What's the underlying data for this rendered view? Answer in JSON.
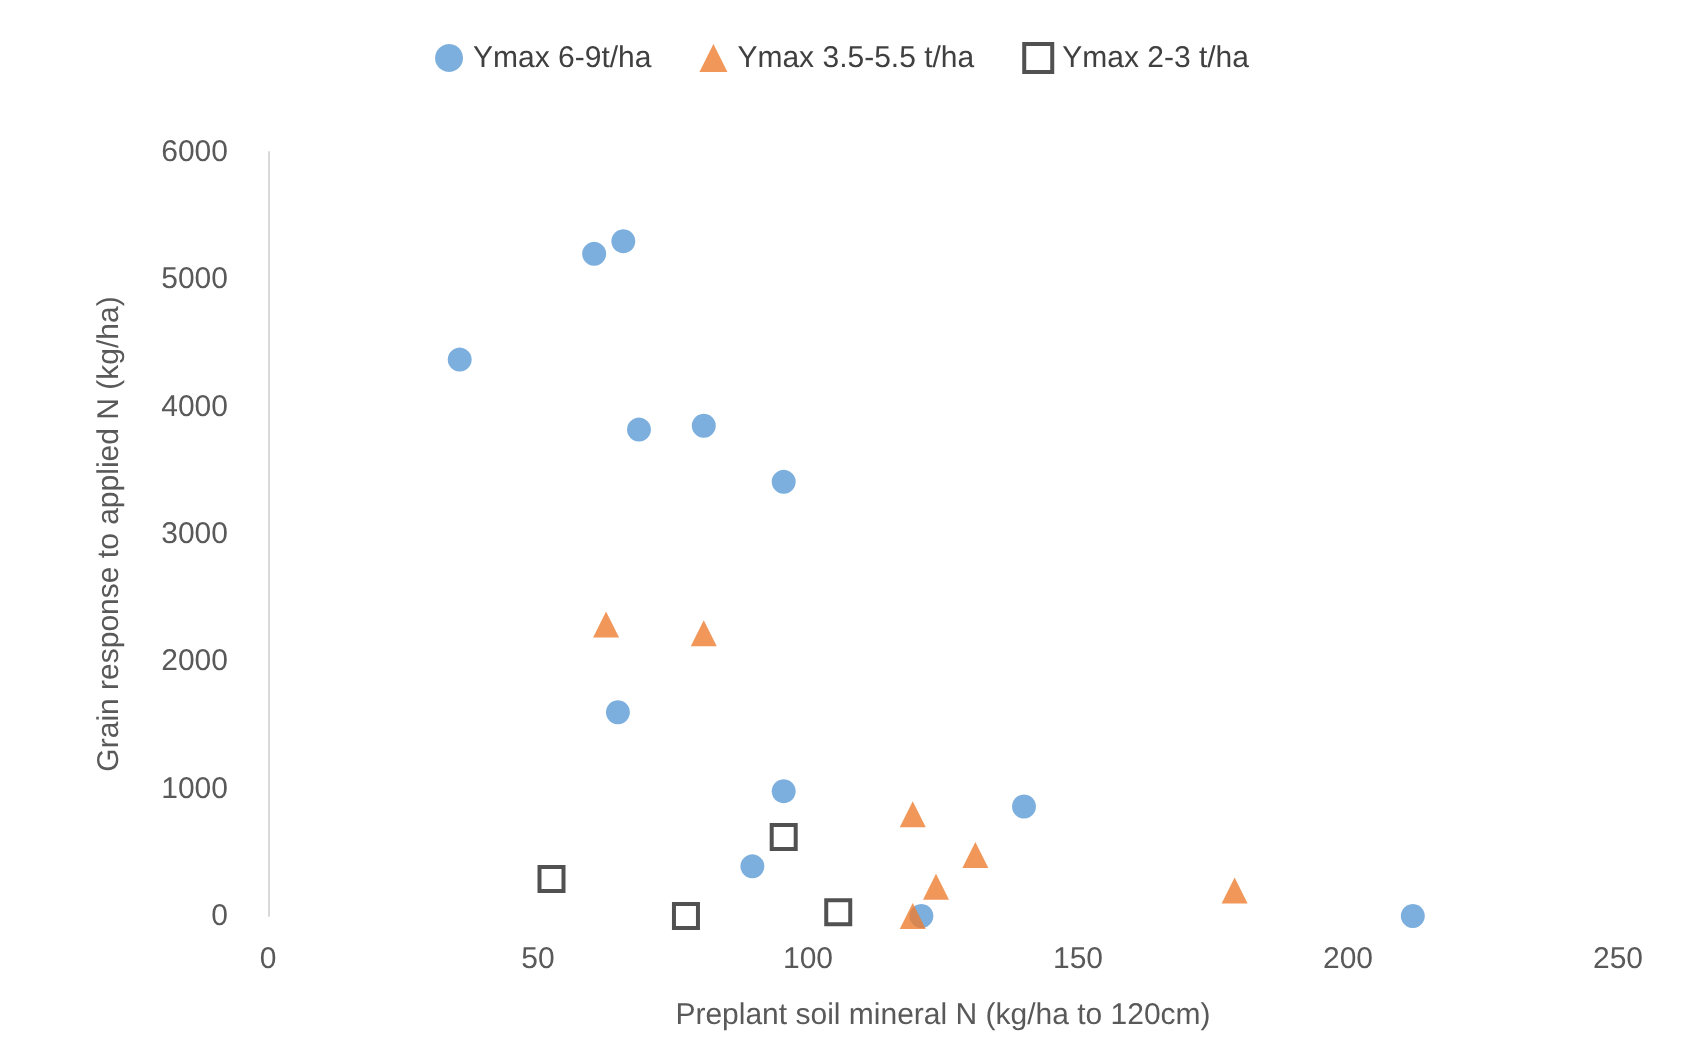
{
  "chart_data": {
    "type": "scatter",
    "xlabel": "Preplant soil mineral N (kg/ha to 120cm)",
    "ylabel": "Grain response to applied N (kg/ha)",
    "xlim": [
      0,
      250
    ],
    "xticks": [
      0,
      50,
      100,
      150,
      200,
      250
    ],
    "ylim": [
      0,
      6000
    ],
    "yticks": [
      0,
      1000,
      2000,
      3000,
      4000,
      5000,
      6000
    ],
    "grid": false,
    "legend": "top",
    "series": [
      {
        "name": "Ymax 6-9t/ha",
        "color": "#5b9bd5",
        "marker": "circle",
        "x": [
          35.5,
          60.4,
          65.8,
          68.7,
          80.7,
          95.5,
          64.8,
          95.5,
          89.7,
          140,
          212,
          121
        ],
        "values": [
          4370,
          5200,
          5300,
          3820,
          3850,
          3410,
          1600,
          980,
          390,
          860,
          0,
          0
        ]
      },
      {
        "name": "Ymax 3.5-5.5 t/ha",
        "color": "#ed7d31",
        "marker": "triangle",
        "x": [
          62.6,
          80.7,
          119.4,
          131,
          123.7,
          179,
          119.4
        ],
        "values": [
          2290,
          2220,
          800,
          480,
          230,
          200,
          0
        ]
      },
      {
        "name": "Ymax 2-3 t/ha",
        "color": "#262626",
        "marker": "square",
        "x": [
          52.5,
          95.5,
          77.4,
          105.6
        ],
        "values": [
          290,
          620,
          0,
          30
        ]
      }
    ]
  }
}
